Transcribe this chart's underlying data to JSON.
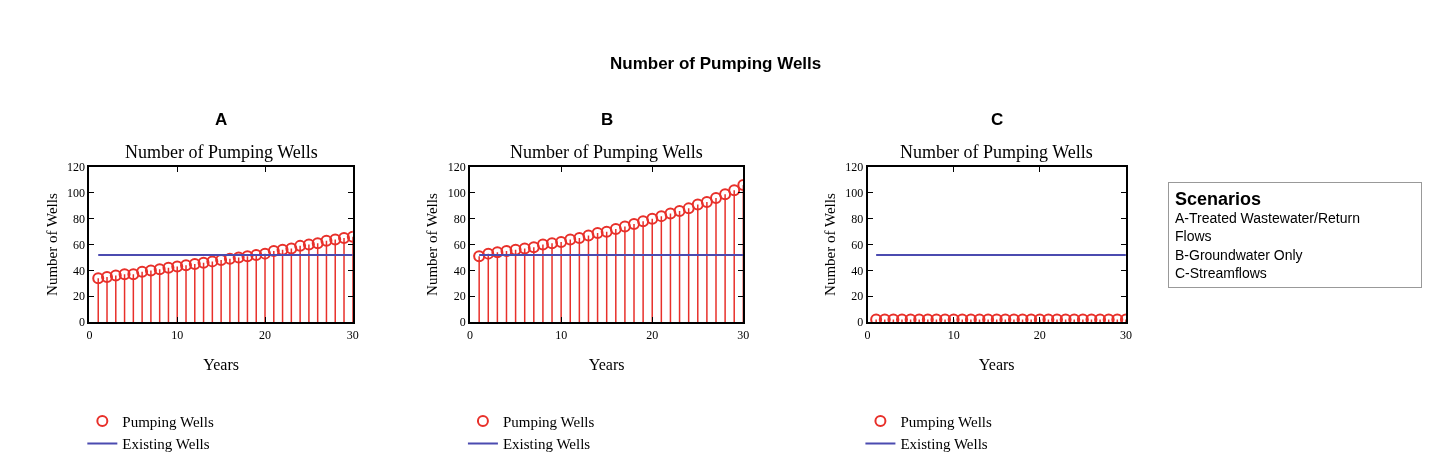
{
  "chart_data": [
    {
      "type": "lollipop",
      "title": "A",
      "subtitle": "Number of Pumping Wells",
      "xlabel": "Years",
      "ylabel": "Number of Wells",
      "x": [
        1,
        2,
        3,
        4,
        5,
        6,
        7,
        8,
        9,
        10,
        11,
        12,
        13,
        14,
        15,
        16,
        17,
        18,
        19,
        20,
        21,
        22,
        23,
        24,
        25,
        26,
        27,
        28,
        29,
        30
      ],
      "xlim": [
        0,
        30
      ],
      "xticks": [
        0,
        10,
        20,
        30
      ],
      "ylim": [
        0,
        120
      ],
      "yticks": [
        0,
        20,
        40,
        60,
        80,
        100,
        120
      ],
      "legend": "bottom",
      "series": [
        {
          "name": "Pumping Wells",
          "marker": "circle",
          "color": "#e8302a",
          "values": [
            34,
            35,
            36,
            37,
            37,
            39,
            40,
            41,
            42,
            43,
            44,
            45,
            46,
            47,
            48,
            49,
            50,
            51,
            52,
            53,
            55,
            56,
            57,
            59,
            60,
            61,
            63,
            64,
            65,
            66
          ]
        },
        {
          "name": "Existing Wells",
          "type": "line",
          "marker": "none",
          "color": "#4b4bb0",
          "values": [
            52,
            52,
            52,
            52,
            52,
            52,
            52,
            52,
            52,
            52,
            52,
            52,
            52,
            52,
            52,
            52,
            52,
            52,
            52,
            52,
            52,
            52,
            52,
            52,
            52,
            52,
            52,
            52,
            52,
            52
          ]
        }
      ]
    },
    {
      "type": "lollipop",
      "title": "B",
      "subtitle": "Number of Pumping Wells",
      "xlabel": "Years",
      "ylabel": "Number of Wells",
      "x": [
        1,
        2,
        3,
        4,
        5,
        6,
        7,
        8,
        9,
        10,
        11,
        12,
        13,
        14,
        15,
        16,
        17,
        18,
        19,
        20,
        21,
        22,
        23,
        24,
        25,
        26,
        27,
        28,
        29,
        30
      ],
      "xlim": [
        0,
        30
      ],
      "xticks": [
        0,
        10,
        20,
        30
      ],
      "ylim": [
        0,
        120
      ],
      "yticks": [
        0,
        20,
        40,
        60,
        80,
        100,
        120
      ],
      "legend": "bottom",
      "series": [
        {
          "name": "Pumping Wells",
          "marker": "circle",
          "color": "#e8302a",
          "values": [
            51,
            53,
            54,
            55,
            56,
            57,
            58,
            60,
            61,
            62,
            64,
            65,
            67,
            69,
            70,
            72,
            74,
            76,
            78,
            80,
            82,
            84,
            86,
            88,
            91,
            93,
            96,
            99,
            102,
            106
          ]
        },
        {
          "name": "Existing Wells",
          "type": "line",
          "marker": "none",
          "color": "#4b4bb0",
          "values": [
            52,
            52,
            52,
            52,
            52,
            52,
            52,
            52,
            52,
            52,
            52,
            52,
            52,
            52,
            52,
            52,
            52,
            52,
            52,
            52,
            52,
            52,
            52,
            52,
            52,
            52,
            52,
            52,
            52,
            52
          ]
        }
      ]
    },
    {
      "type": "lollipop",
      "title": "C",
      "subtitle": "Number of Pumping Wells",
      "xlabel": "Years",
      "ylabel": "Number of Wells",
      "x": [
        1,
        2,
        3,
        4,
        5,
        6,
        7,
        8,
        9,
        10,
        11,
        12,
        13,
        14,
        15,
        16,
        17,
        18,
        19,
        20,
        21,
        22,
        23,
        24,
        25,
        26,
        27,
        28,
        29,
        30
      ],
      "xlim": [
        0,
        30
      ],
      "xticks": [
        0,
        10,
        20,
        30
      ],
      "ylim": [
        0,
        120
      ],
      "yticks": [
        0,
        20,
        40,
        60,
        80,
        100,
        120
      ],
      "legend": "bottom",
      "series": [
        {
          "name": "Pumping Wells",
          "marker": "circle",
          "color": "#e8302a",
          "values": [
            2,
            2,
            2,
            2,
            2,
            2,
            2,
            2,
            2,
            2,
            2,
            2,
            2,
            2,
            2,
            2,
            2,
            2,
            2,
            2,
            2,
            2,
            2,
            2,
            2,
            2,
            2,
            2,
            2,
            2
          ]
        },
        {
          "name": "Existing Wells",
          "type": "line",
          "marker": "none",
          "color": "#4b4bb0",
          "values": [
            52,
            52,
            52,
            52,
            52,
            52,
            52,
            52,
            52,
            52,
            52,
            52,
            52,
            52,
            52,
            52,
            52,
            52,
            52,
            52,
            52,
            52,
            52,
            52,
            52,
            52,
            52,
            52,
            52,
            52
          ]
        }
      ]
    },
    {
      "type": "other",
      "title": "Number of Pumping Wells",
      "subtitle": "Scenarios",
      "annotations": [
        "A-Treated Wastewater/Return Flows",
        "B-Groundwater Only",
        "C-Streamflows"
      ]
    }
  ]
}
